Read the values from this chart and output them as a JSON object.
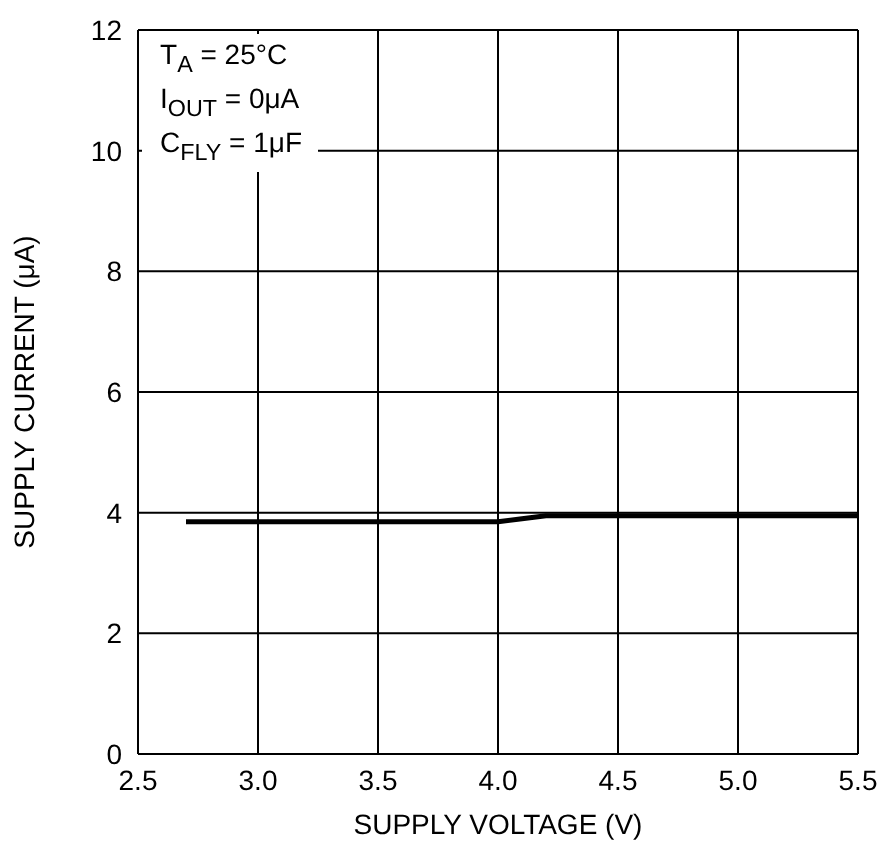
{
  "chart_data": {
    "type": "line",
    "xlabel": "SUPPLY VOLTAGE (V)",
    "ylabel": "SUPPLY CURRENT (μA)",
    "annotations": [
      "T$_{A}$ = 25°C",
      "I$_{OUT}$ = 0μA",
      "C$_{FLY}$ = 1μF"
    ],
    "x": [
      2.7,
      3.0,
      3.5,
      4.0,
      4.1,
      4.2,
      4.5,
      5.0,
      5.5
    ],
    "series": [
      {
        "color": "#000000",
        "values": [
          3.85,
          3.85,
          3.85,
          3.85,
          3.9,
          3.95,
          3.95,
          3.95,
          3.95
        ]
      }
    ],
    "xlim": [
      2.5,
      5.5
    ],
    "xticks": [
      2.5,
      {
        "value": 3,
        "label": "3.0"
      },
      3.5,
      {
        "value": 4,
        "label": "4.0"
      },
      4.5,
      {
        "value": 5,
        "label": "5.0"
      },
      5.5
    ],
    "ylim": [
      0,
      12
    ],
    "yticks": [
      0,
      2,
      4,
      6,
      8,
      10,
      12
    ],
    "grid": true,
    "legend": false,
    "marker": "none",
    "line_style": "solid"
  }
}
